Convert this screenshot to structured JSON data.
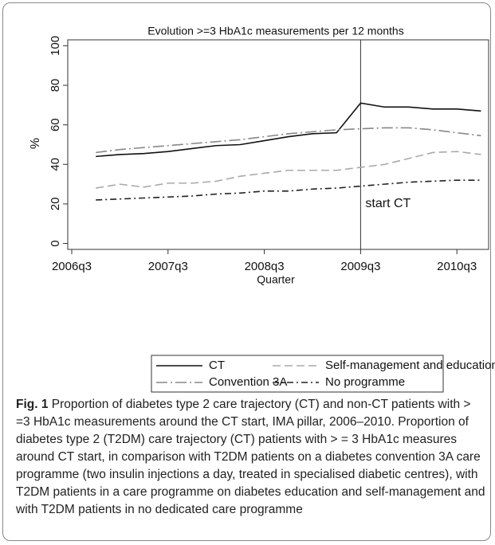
{
  "chart_data": {
    "type": "line",
    "title": "Evolution >=3 HbA1c measurements per 12 months",
    "xlabel": "Quarter",
    "ylabel": "%",
    "categories": [
      "2006q3",
      null,
      null,
      null,
      "2007q3",
      null,
      null,
      null,
      "2008q3",
      null,
      null,
      null,
      "2009q3",
      null,
      null,
      null,
      "2010q3",
      null
    ],
    "ylim": [
      -3,
      103
    ],
    "yticks": [
      0,
      20,
      40,
      60,
      80,
      100
    ],
    "series": [
      {
        "name": "CT",
        "color": "#111111",
        "dash": "none",
        "values": [
          null,
          44,
          45,
          45.5,
          46.5,
          48,
          49.5,
          50,
          52,
          54,
          55.5,
          56,
          71,
          69,
          69,
          68,
          68,
          67
        ]
      },
      {
        "name": "Self-management and education",
        "color": "#aaaaaa",
        "dash": "10 5",
        "values": [
          null,
          28,
          30,
          28.5,
          30.5,
          30.5,
          31.5,
          34,
          35.5,
          37,
          37,
          37,
          38.5,
          40,
          43,
          46,
          46.5,
          45
        ]
      },
      {
        "name": "Convention 3A",
        "color": "#888888",
        "dash": "14 4 2 4",
        "values": [
          null,
          46,
          47.5,
          48.5,
          49.5,
          50.5,
          51.5,
          52.5,
          54,
          55.5,
          56.5,
          57.5,
          58,
          58.5,
          58.5,
          57.5,
          56,
          54.5
        ]
      },
      {
        "name": "No programme",
        "color": "#222222",
        "dash": "8 4 2 4",
        "values": [
          null,
          22,
          22.5,
          23,
          23.5,
          24,
          25,
          25.5,
          26.5,
          26.5,
          27.5,
          28,
          29,
          30,
          31,
          31.5,
          32,
          32
        ]
      }
    ],
    "annotations": [
      {
        "text": "start CT",
        "x": "2009q3"
      }
    ]
  },
  "caption": {
    "label": "Fig. 1",
    "text": "Proportion of diabetes type 2 care trajectory (CT) and non-CT patients with > =3 HbA1c measurements around the CT start, IMA pillar, 2006–2010. Proportion of diabetes type 2 (T2DM) care trajectory (CT) patients with > = 3 HbA1c measures around CT start, in comparison with T2DM patients on a diabetes convention 3A care programme (two insulin injections a day, treated in specialised diabetic centres), with T2DM patients in a care programme on diabetes education and self-management and with T2DM patients in no dedicated care programme"
  }
}
